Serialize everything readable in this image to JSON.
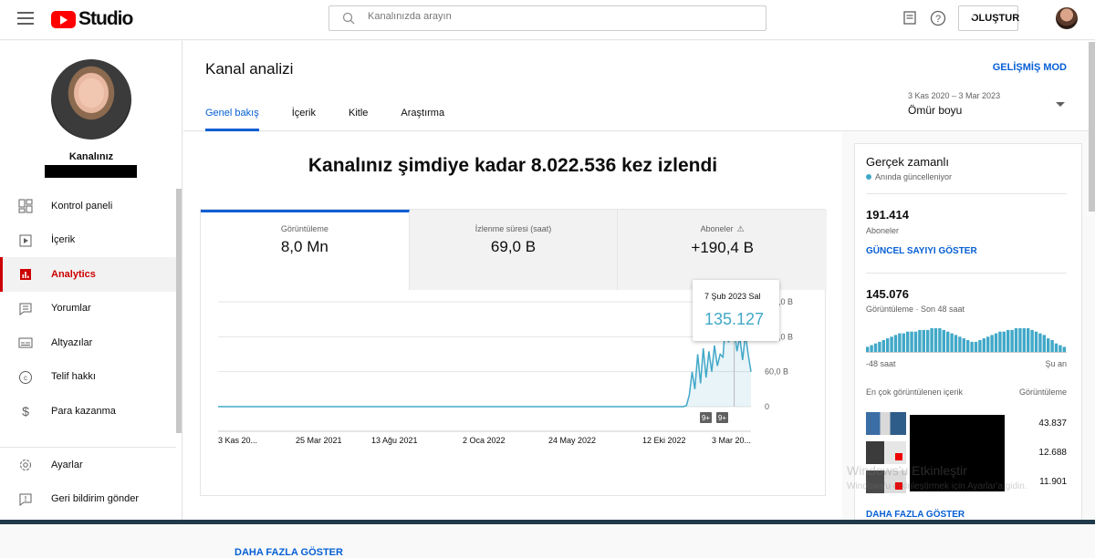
{
  "header": {
    "logo_text": "Studio",
    "search_placeholder": "Kanalınızda arayın",
    "create_label": "OLUŞTUR"
  },
  "sidebar": {
    "channel_label": "Kanalınız",
    "items": [
      {
        "label": "Kontrol paneli",
        "icon": "dashboard-icon"
      },
      {
        "label": "İçerik",
        "icon": "content-icon"
      },
      {
        "label": "Analytics",
        "icon": "analytics-icon",
        "active": true
      },
      {
        "label": "Yorumlar",
        "icon": "comments-icon"
      },
      {
        "label": "Altyazılar",
        "icon": "subtitles-icon"
      },
      {
        "label": "Telif hakkı",
        "icon": "copyright-icon"
      },
      {
        "label": "Para kazanma",
        "icon": "dollar-icon"
      }
    ],
    "bottom_items": [
      {
        "label": "Ayarlar",
        "icon": "gear-icon"
      },
      {
        "label": "Geri bildirim gönder",
        "icon": "feedback-icon"
      }
    ]
  },
  "page": {
    "title": "Kanal analizi",
    "advanced_mode": "GELİŞMİŞ MOD",
    "tabs": [
      "Genel bakış",
      "İçerik",
      "Kitle",
      "Araştırma"
    ],
    "date_range": "3 Kas 2020 – 3 Mar 2023",
    "date_label": "Ömür boyu"
  },
  "overview": {
    "headline": "Kanalınız şimdiye kadar 8.022.536 kez izlendi",
    "metrics": [
      {
        "label": "Görüntüleme",
        "value": "8,0 Mn"
      },
      {
        "label": "İzlenme süresi (saat)",
        "value": "69,0 B"
      },
      {
        "label": "Aboneler",
        "value": "+190,4 B"
      }
    ],
    "tooltip_date": "7 Şub 2023 Sal",
    "tooltip_value": "135.127",
    "badges": [
      "9+",
      "9+"
    ],
    "more_link": "DAHA FAZLA GÖSTER"
  },
  "chart_data": {
    "type": "area",
    "x_ticks": [
      "3 Kas 20...",
      "25 Mar 2021",
      "13 Ağu 2021",
      "2 Oca 2022",
      "24 May 2022",
      "12 Eki 2022",
      "3 Mar 20..."
    ],
    "y_ticks": [
      "0",
      "60,0 B",
      "120,0 B",
      "180,0 B"
    ],
    "ylim": [
      0,
      180000
    ],
    "grid": true,
    "color": "#41a8c8",
    "series": [
      {
        "values": [
          0,
          0,
          0,
          0,
          0,
          0,
          0,
          0,
          0,
          0,
          0,
          0,
          0,
          0,
          0,
          0,
          0,
          0,
          0,
          0,
          0,
          0,
          0,
          0,
          0,
          0,
          0,
          0,
          0,
          0,
          0,
          0,
          0,
          0,
          0,
          0,
          0,
          0,
          0,
          0,
          0,
          0,
          0,
          0,
          0,
          0,
          0,
          0,
          0,
          0,
          0,
          0,
          0,
          0,
          0,
          0,
          0,
          0,
          0,
          0,
          0,
          0,
          0,
          0,
          0,
          0,
          0,
          0,
          0,
          0,
          0,
          0,
          0,
          0,
          0,
          0,
          0,
          0,
          0,
          0,
          0,
          0,
          0,
          0,
          0,
          0,
          0,
          0,
          0,
          0,
          0,
          0,
          0,
          0,
          0,
          0,
          0,
          0,
          0,
          0,
          0,
          0,
          0,
          0,
          0,
          0,
          0,
          0,
          0,
          0,
          0,
          0,
          0,
          0,
          0,
          0,
          0,
          0,
          0,
          0,
          0,
          0,
          0,
          0,
          0,
          0,
          0,
          0,
          0,
          0,
          0,
          0,
          0,
          0,
          0,
          0,
          0,
          0,
          0,
          0,
          0,
          0,
          0,
          0,
          0,
          0,
          0,
          0,
          0,
          0,
          0,
          0,
          0,
          0,
          0,
          0,
          0,
          0,
          0,
          0,
          0,
          0,
          0,
          0,
          0,
          0,
          0,
          2000,
          20000,
          60000,
          30000,
          90000,
          40000,
          100000,
          50000,
          95000,
          60000,
          105000,
          70000,
          90000,
          85000,
          150000,
          110000,
          145000,
          135127,
          95000,
          120000,
          80000,
          125000,
          90000,
          60000
        ]
      }
    ]
  },
  "realtime": {
    "title": "Gerçek zamanlı",
    "subtitle": "Anında güncelleniyor",
    "subscribers_value": "191.414",
    "subscribers_label": "Aboneler",
    "show_count_link": "GÜNCEL SAYIYI GÖSTER",
    "views_value": "145.076",
    "views_label": "Görüntüleme · Son 48 saat",
    "axis_start": "-48 saat",
    "axis_end": "Şu an",
    "top_content_label": "En çok görüntülenen içerik",
    "top_views_label": "Görüntüleme",
    "top_items": [
      "43.837",
      "12.688",
      "11.901"
    ],
    "more_link": "DAHA FAZLA GÖSTER",
    "bars": [
      3,
      4,
      5,
      6,
      7,
      8,
      9,
      10,
      11,
      11,
      12,
      12,
      12,
      13,
      13,
      13,
      14,
      14,
      14,
      13,
      12,
      11,
      10,
      9,
      8,
      7,
      6,
      6,
      7,
      8,
      9,
      10,
      11,
      12,
      12,
      13,
      13,
      14,
      14,
      14,
      14,
      13,
      12,
      11,
      10,
      8,
      7,
      5,
      4,
      3
    ]
  },
  "watermark": {
    "line1": "Windows'u Etkinleştir",
    "line2": "Windows'u etkinleştirmek için Ayarlar'a gidin."
  }
}
